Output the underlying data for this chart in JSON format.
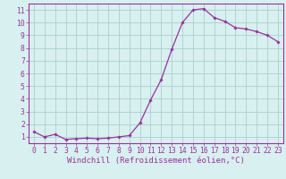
{
  "x": [
    0,
    1,
    2,
    3,
    4,
    5,
    6,
    7,
    8,
    9,
    10,
    11,
    12,
    13,
    14,
    15,
    16,
    17,
    18,
    19,
    20,
    21,
    22,
    23
  ],
  "y": [
    1.4,
    1.0,
    1.2,
    0.8,
    0.85,
    0.9,
    0.85,
    0.9,
    1.0,
    1.1,
    2.1,
    3.9,
    5.5,
    7.9,
    10.0,
    11.0,
    11.1,
    10.4,
    10.1,
    9.6,
    9.5,
    9.3,
    9.0,
    8.5
  ],
  "line_color": "#993399",
  "marker": "D",
  "marker_size": 1.8,
  "linewidth": 0.9,
  "xlabel": "Windchill (Refroidissement éolien,°C)",
  "xlabel_fontsize": 6.5,
  "ylabel_ticks": [
    1,
    2,
    3,
    4,
    5,
    6,
    7,
    8,
    9,
    10,
    11
  ],
  "xlim": [
    -0.5,
    23.5
  ],
  "ylim": [
    0.5,
    11.5
  ],
  "bg_color": "#d8f0f0",
  "grid_color": "#aacfcf",
  "tick_color": "#993399",
  "tick_fontsize": 5.8,
  "spine_color": "#993399"
}
